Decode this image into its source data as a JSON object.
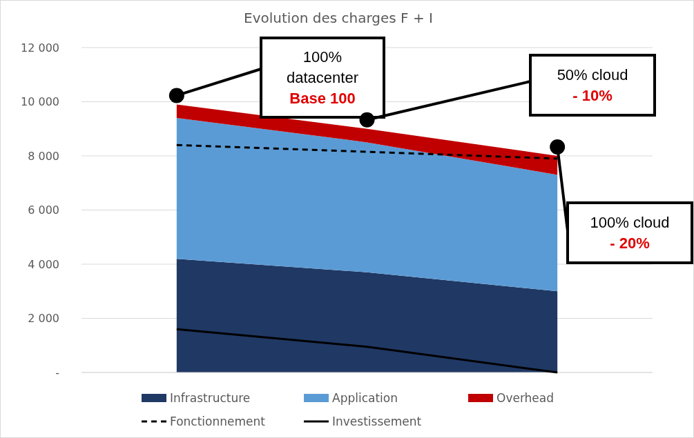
{
  "chart_data": {
    "type": "area",
    "title": "Evolution des charges F + I",
    "stacked": true,
    "categories": [
      null,
      null,
      null
    ],
    "ylim": [
      0,
      12000
    ],
    "yticks": [
      {
        "value": 0,
        "label": "-"
      },
      {
        "value": 2000,
        "label": "2 000"
      },
      {
        "value": 4000,
        "label": "4 000"
      },
      {
        "value": 6000,
        "label": "6 000"
      },
      {
        "value": 8000,
        "label": "8 000"
      },
      {
        "value": 10000,
        "label": "10 000"
      },
      {
        "value": 12000,
        "label": "12 000"
      }
    ],
    "grid": "y",
    "legend": "bottom",
    "series": [
      {
        "name": "Infrastructure",
        "color": "#203864",
        "values": [
          4200,
          3700,
          3000
        ]
      },
      {
        "name": "Application",
        "color": "#5b9bd5",
        "values": [
          5200,
          4800,
          4300
        ]
      },
      {
        "name": "Overhead",
        "color": "#c00000",
        "values": [
          500,
          500,
          700
        ]
      },
      {
        "name": "Fonctionnement",
        "type": "line",
        "line_style": "dashed",
        "color": "#000000",
        "values": [
          8400,
          8150,
          7900
        ]
      },
      {
        "name": "Investissement",
        "type": "line",
        "line_style": "solid",
        "color": "#000000",
        "values": [
          1600,
          950,
          0
        ]
      }
    ],
    "annotations": [
      "100%\ndatacenter\nBase 100",
      "50% cloud\n- 10%",
      "100% cloud\n- 20%"
    ]
  }
}
